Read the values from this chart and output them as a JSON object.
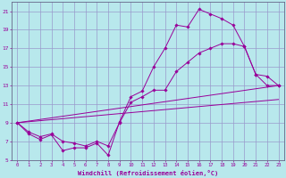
{
  "xlabel": "Windchill (Refroidissement éolien,°C)",
  "xlim": [
    -0.5,
    23.5
  ],
  "ylim": [
    5,
    22
  ],
  "yticks": [
    5,
    7,
    9,
    11,
    13,
    15,
    17,
    19,
    21
  ],
  "xticks": [
    0,
    1,
    2,
    3,
    4,
    5,
    6,
    7,
    8,
    9,
    10,
    11,
    12,
    13,
    14,
    15,
    16,
    17,
    18,
    19,
    20,
    21,
    22,
    23
  ],
  "bg_color": "#b8e8ec",
  "line_color": "#990099",
  "grid_color": "#9999cc",
  "line1_x": [
    0,
    1,
    2,
    3,
    4,
    5,
    6,
    7,
    8,
    9,
    10,
    11,
    12,
    13,
    14,
    15,
    16,
    17,
    18,
    19,
    20,
    21,
    22,
    23
  ],
  "line1_y": [
    9.0,
    7.8,
    7.2,
    7.7,
    6.0,
    6.3,
    6.3,
    6.8,
    5.5,
    9.1,
    11.8,
    12.4,
    15.0,
    17.0,
    19.5,
    19.3,
    21.2,
    20.7,
    20.2,
    19.5,
    17.2,
    14.2,
    13.0,
    13.0
  ],
  "line2_x": [
    0,
    1,
    2,
    3,
    4,
    5,
    6,
    7,
    8,
    9,
    10,
    11,
    12,
    13,
    14,
    15,
    16,
    17,
    18,
    19,
    20,
    21,
    22,
    23
  ],
  "line2_y": [
    9.0,
    8.0,
    7.5,
    7.8,
    7.0,
    6.8,
    6.5,
    7.0,
    6.5,
    9.0,
    11.2,
    11.8,
    12.5,
    12.5,
    14.5,
    15.5,
    16.5,
    17.0,
    17.5,
    17.5,
    17.2,
    14.2,
    14.0,
    13.0
  ],
  "trend1_x": [
    0,
    23
  ],
  "trend1_y": [
    9.0,
    13.0
  ],
  "trend2_x": [
    0,
    23
  ],
  "trend2_y": [
    9.0,
    11.5
  ]
}
